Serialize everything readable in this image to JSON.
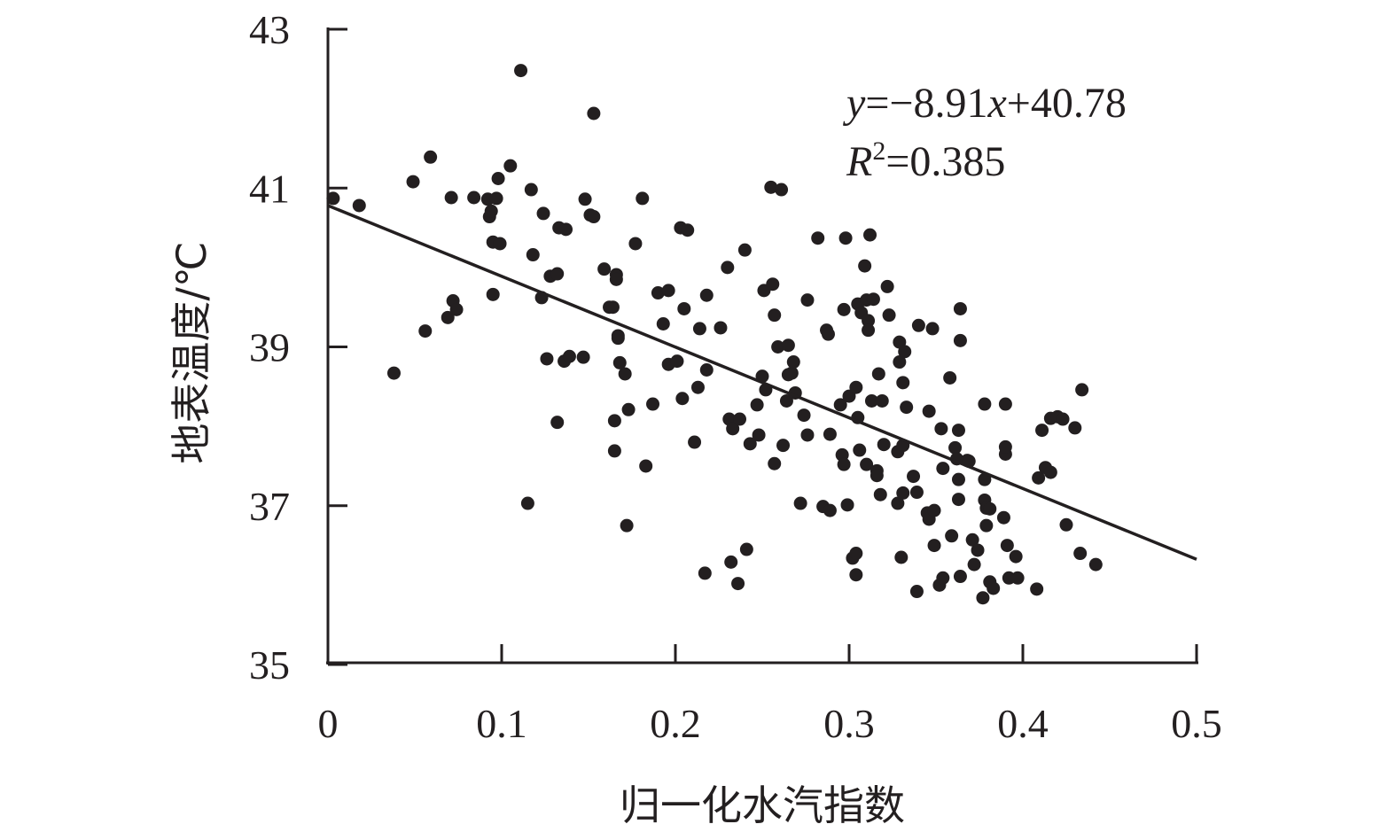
{
  "chart_data": {
    "type": "scatter",
    "title": "",
    "xlabel": "归一化水汽指数",
    "ylabel": "地表温度/℃",
    "xlim": [
      0,
      0.5
    ],
    "ylim": [
      35,
      43
    ],
    "xticks": [
      "0",
      "0.1",
      "0.2",
      "0.3",
      "0.4",
      "0.5"
    ],
    "yticks": [
      "35",
      "37",
      "39",
      "41",
      "43"
    ],
    "grid": false,
    "point_color": "#231f20",
    "fit": {
      "slope": -8.91,
      "intercept": 40.78,
      "r2": 0.385
    },
    "annotation": {
      "y_var": "y",
      "eq_mid": "=−8.91",
      "x_var": "x",
      "eq_end": "+40.78",
      "r_var": "R",
      "r_sup": "2",
      "r_val": "=0.385"
    },
    "points": [
      [
        0.003,
        40.87
      ],
      [
        0.018,
        40.78
      ],
      [
        0.038,
        38.67
      ],
      [
        0.049,
        41.08
      ],
      [
        0.056,
        39.2
      ],
      [
        0.059,
        41.39
      ],
      [
        0.069,
        39.37
      ],
      [
        0.071,
        40.88
      ],
      [
        0.072,
        39.58
      ],
      [
        0.074,
        39.47
      ],
      [
        0.084,
        40.88
      ],
      [
        0.092,
        40.86
      ],
      [
        0.093,
        40.64
      ],
      [
        0.094,
        40.71
      ],
      [
        0.095,
        39.66
      ],
      [
        0.095,
        40.32
      ],
      [
        0.097,
        40.87
      ],
      [
        0.098,
        41.12
      ],
      [
        0.099,
        40.3
      ],
      [
        0.105,
        41.28
      ],
      [
        0.111,
        42.48
      ],
      [
        0.115,
        37.03
      ],
      [
        0.117,
        40.98
      ],
      [
        0.118,
        40.16
      ],
      [
        0.123,
        39.62
      ],
      [
        0.124,
        40.68
      ],
      [
        0.126,
        38.85
      ],
      [
        0.128,
        39.89
      ],
      [
        0.132,
        39.92
      ],
      [
        0.132,
        38.05
      ],
      [
        0.133,
        40.5
      ],
      [
        0.137,
        40.48
      ],
      [
        0.136,
        38.82
      ],
      [
        0.139,
        38.88
      ],
      [
        0.147,
        38.87
      ],
      [
        0.148,
        40.86
      ],
      [
        0.151,
        40.66
      ],
      [
        0.153,
        41.94
      ],
      [
        0.153,
        40.64
      ],
      [
        0.159,
        39.98
      ],
      [
        0.162,
        39.5
      ],
      [
        0.164,
        39.5
      ],
      [
        0.166,
        39.91
      ],
      [
        0.166,
        39.85
      ],
      [
        0.167,
        39.14
      ],
      [
        0.167,
        39.11
      ],
      [
        0.168,
        38.8
      ],
      [
        0.165,
        38.07
      ],
      [
        0.165,
        37.69
      ],
      [
        0.171,
        38.66
      ],
      [
        0.172,
        36.75
      ],
      [
        0.173,
        38.21
      ],
      [
        0.177,
        40.3
      ],
      [
        0.181,
        40.87
      ],
      [
        0.183,
        37.5
      ],
      [
        0.187,
        38.28
      ],
      [
        0.19,
        39.68
      ],
      [
        0.193,
        39.29
      ],
      [
        0.196,
        39.71
      ],
      [
        0.196,
        38.78
      ],
      [
        0.201,
        38.82
      ],
      [
        0.203,
        40.5
      ],
      [
        0.204,
        38.35
      ],
      [
        0.207,
        40.47
      ],
      [
        0.205,
        39.48
      ],
      [
        0.211,
        37.8
      ],
      [
        0.213,
        38.49
      ],
      [
        0.214,
        39.23
      ],
      [
        0.217,
        36.15
      ],
      [
        0.218,
        39.65
      ],
      [
        0.218,
        38.71
      ],
      [
        0.226,
        39.24
      ],
      [
        0.23,
        40.0
      ],
      [
        0.231,
        38.09
      ],
      [
        0.232,
        36.29
      ],
      [
        0.233,
        37.97
      ],
      [
        0.236,
        36.02
      ],
      [
        0.237,
        38.09
      ],
      [
        0.24,
        40.22
      ],
      [
        0.241,
        36.45
      ],
      [
        0.243,
        37.78
      ],
      [
        0.247,
        38.27
      ],
      [
        0.248,
        37.89
      ],
      [
        0.25,
        38.63
      ],
      [
        0.251,
        39.71
      ],
      [
        0.252,
        38.46
      ],
      [
        0.255,
        41.01
      ],
      [
        0.256,
        39.79
      ],
      [
        0.257,
        37.53
      ],
      [
        0.257,
        39.4
      ],
      [
        0.259,
        39.0
      ],
      [
        0.261,
        40.98
      ],
      [
        0.262,
        37.76
      ],
      [
        0.264,
        38.32
      ],
      [
        0.265,
        39.02
      ],
      [
        0.265,
        38.65
      ],
      [
        0.267,
        38.67
      ],
      [
        0.268,
        38.81
      ],
      [
        0.269,
        38.42
      ],
      [
        0.272,
        37.03
      ],
      [
        0.274,
        38.14
      ],
      [
        0.276,
        39.59
      ],
      [
        0.276,
        37.89
      ],
      [
        0.282,
        40.37
      ],
      [
        0.285,
        36.99
      ],
      [
        0.287,
        39.21
      ],
      [
        0.288,
        39.16
      ],
      [
        0.289,
        36.94
      ],
      [
        0.289,
        37.9
      ],
      [
        0.295,
        38.27
      ],
      [
        0.296,
        37.64
      ],
      [
        0.297,
        37.52
      ],
      [
        0.297,
        39.47
      ],
      [
        0.298,
        40.37
      ],
      [
        0.299,
        37.01
      ],
      [
        0.3,
        38.38
      ],
      [
        0.302,
        36.34
      ],
      [
        0.304,
        36.4
      ],
      [
        0.304,
        36.13
      ],
      [
        0.304,
        38.49
      ],
      [
        0.305,
        38.11
      ],
      [
        0.305,
        39.54
      ],
      [
        0.306,
        37.7
      ],
      [
        0.307,
        39.43
      ],
      [
        0.309,
        40.02
      ],
      [
        0.31,
        39.59
      ],
      [
        0.31,
        37.52
      ],
      [
        0.311,
        39.33
      ],
      [
        0.311,
        39.21
      ],
      [
        0.312,
        40.41
      ],
      [
        0.313,
        38.32
      ],
      [
        0.314,
        39.6
      ],
      [
        0.316,
        37.44
      ],
      [
        0.316,
        37.38
      ],
      [
        0.317,
        38.66
      ],
      [
        0.318,
        37.14
      ],
      [
        0.319,
        38.32
      ],
      [
        0.32,
        37.77
      ],
      [
        0.322,
        39.76
      ],
      [
        0.323,
        39.4
      ],
      [
        0.328,
        37.68
      ],
      [
        0.328,
        37.03
      ],
      [
        0.329,
        39.06
      ],
      [
        0.329,
        38.81
      ],
      [
        0.33,
        36.35
      ],
      [
        0.331,
        38.55
      ],
      [
        0.331,
        37.76
      ],
      [
        0.331,
        37.16
      ],
      [
        0.332,
        38.94
      ],
      [
        0.333,
        38.24
      ],
      [
        0.337,
        37.37
      ],
      [
        0.339,
        37.17
      ],
      [
        0.339,
        35.92
      ],
      [
        0.34,
        39.27
      ],
      [
        0.345,
        36.91
      ],
      [
        0.346,
        36.83
      ],
      [
        0.346,
        38.19
      ],
      [
        0.348,
        39.23
      ],
      [
        0.349,
        36.94
      ],
      [
        0.349,
        36.5
      ],
      [
        0.352,
        36.0
      ],
      [
        0.353,
        37.97
      ],
      [
        0.354,
        36.09
      ],
      [
        0.354,
        37.47
      ],
      [
        0.358,
        38.61
      ],
      [
        0.359,
        36.62
      ],
      [
        0.361,
        37.73
      ],
      [
        0.362,
        37.59
      ],
      [
        0.363,
        37.95
      ],
      [
        0.363,
        37.08
      ],
      [
        0.363,
        37.33
      ],
      [
        0.364,
        36.11
      ],
      [
        0.364,
        39.48
      ],
      [
        0.364,
        39.08
      ],
      [
        0.368,
        37.57
      ],
      [
        0.369,
        37.56
      ],
      [
        0.371,
        36.57
      ],
      [
        0.372,
        36.26
      ],
      [
        0.374,
        36.44
      ],
      [
        0.377,
        35.84
      ],
      [
        0.378,
        38.28
      ],
      [
        0.378,
        37.33
      ],
      [
        0.378,
        37.07
      ],
      [
        0.379,
        36.75
      ],
      [
        0.379,
        36.97
      ],
      [
        0.381,
        36.04
      ],
      [
        0.381,
        36.96
      ],
      [
        0.383,
        35.96
      ],
      [
        0.39,
        37.65
      ],
      [
        0.39,
        37.74
      ],
      [
        0.39,
        38.28
      ],
      [
        0.389,
        36.85
      ],
      [
        0.391,
        36.5
      ],
      [
        0.392,
        36.09
      ],
      [
        0.396,
        36.36
      ],
      [
        0.397,
        36.09
      ],
      [
        0.408,
        35.95
      ],
      [
        0.409,
        37.35
      ],
      [
        0.411,
        37.95
      ],
      [
        0.413,
        37.48
      ],
      [
        0.416,
        37.42
      ],
      [
        0.416,
        38.1
      ],
      [
        0.42,
        38.12
      ],
      [
        0.423,
        38.09
      ],
      [
        0.425,
        36.76
      ],
      [
        0.43,
        37.98
      ],
      [
        0.433,
        36.4
      ],
      [
        0.434,
        38.46
      ],
      [
        0.442,
        36.26
      ]
    ]
  }
}
